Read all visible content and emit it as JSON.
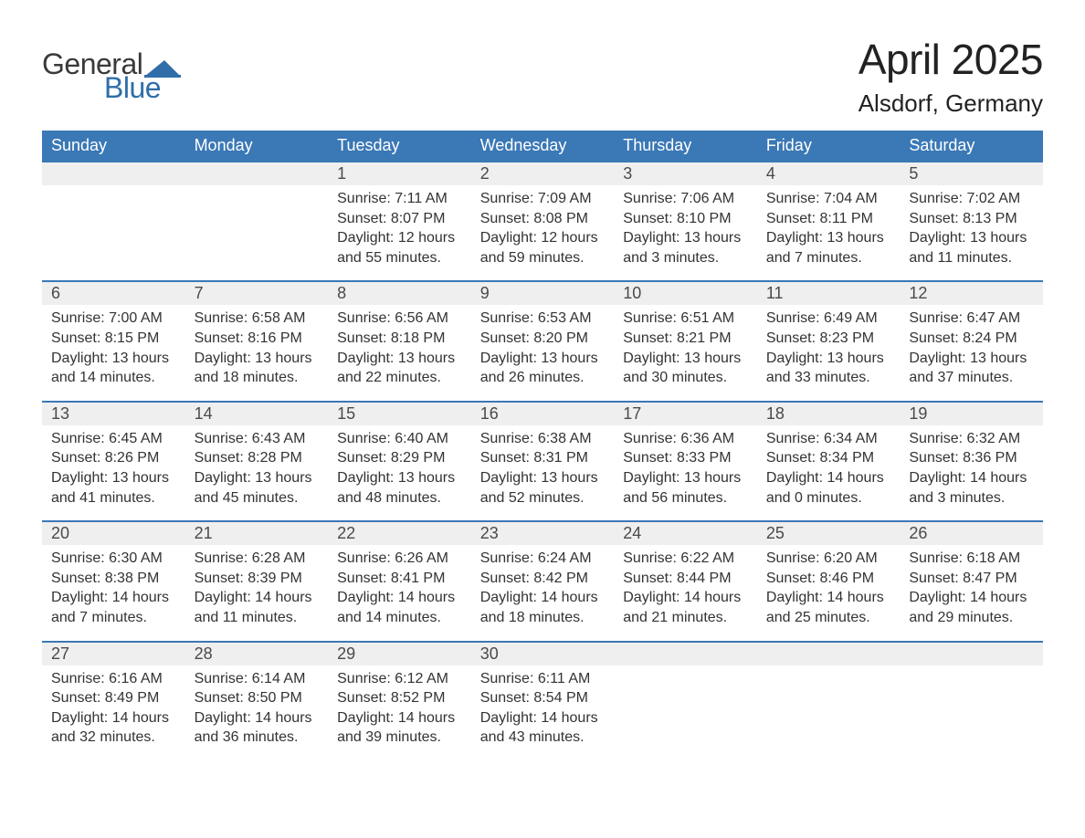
{
  "logo": {
    "word1": "General",
    "word2": "Blue",
    "mark_color": "#2f6ea8",
    "text_gray": "#3a3a3a"
  },
  "title": "April 2025",
  "location": "Alsdorf, Germany",
  "colors": {
    "header_bg": "#3a78b6",
    "header_text": "#ffffff",
    "daynum_bg": "#efefef",
    "row_border": "#3a78b6",
    "body_text": "#333333",
    "daynum_text": "#4a4a4a",
    "page_bg": "#ffffff"
  },
  "typography": {
    "title_fontsize": 46,
    "location_fontsize": 26,
    "header_fontsize": 18,
    "daynum_fontsize": 18,
    "cell_fontsize": 16,
    "logo_fontsize": 32
  },
  "weekdays": [
    "Sunday",
    "Monday",
    "Tuesday",
    "Wednesday",
    "Thursday",
    "Friday",
    "Saturday"
  ],
  "labels": {
    "sunrise": "Sunrise: ",
    "sunset": "Sunset: ",
    "daylight": "Daylight: "
  },
  "weeks": [
    [
      null,
      null,
      {
        "n": "1",
        "sunrise": "7:11 AM",
        "sunset": "8:07 PM",
        "day_h": 12,
        "day_m": 55
      },
      {
        "n": "2",
        "sunrise": "7:09 AM",
        "sunset": "8:08 PM",
        "day_h": 12,
        "day_m": 59
      },
      {
        "n": "3",
        "sunrise": "7:06 AM",
        "sunset": "8:10 PM",
        "day_h": 13,
        "day_m": 3
      },
      {
        "n": "4",
        "sunrise": "7:04 AM",
        "sunset": "8:11 PM",
        "day_h": 13,
        "day_m": 7
      },
      {
        "n": "5",
        "sunrise": "7:02 AM",
        "sunset": "8:13 PM",
        "day_h": 13,
        "day_m": 11
      }
    ],
    [
      {
        "n": "6",
        "sunrise": "7:00 AM",
        "sunset": "8:15 PM",
        "day_h": 13,
        "day_m": 14
      },
      {
        "n": "7",
        "sunrise": "6:58 AM",
        "sunset": "8:16 PM",
        "day_h": 13,
        "day_m": 18
      },
      {
        "n": "8",
        "sunrise": "6:56 AM",
        "sunset": "8:18 PM",
        "day_h": 13,
        "day_m": 22
      },
      {
        "n": "9",
        "sunrise": "6:53 AM",
        "sunset": "8:20 PM",
        "day_h": 13,
        "day_m": 26
      },
      {
        "n": "10",
        "sunrise": "6:51 AM",
        "sunset": "8:21 PM",
        "day_h": 13,
        "day_m": 30
      },
      {
        "n": "11",
        "sunrise": "6:49 AM",
        "sunset": "8:23 PM",
        "day_h": 13,
        "day_m": 33
      },
      {
        "n": "12",
        "sunrise": "6:47 AM",
        "sunset": "8:24 PM",
        "day_h": 13,
        "day_m": 37
      }
    ],
    [
      {
        "n": "13",
        "sunrise": "6:45 AM",
        "sunset": "8:26 PM",
        "day_h": 13,
        "day_m": 41
      },
      {
        "n": "14",
        "sunrise": "6:43 AM",
        "sunset": "8:28 PM",
        "day_h": 13,
        "day_m": 45
      },
      {
        "n": "15",
        "sunrise": "6:40 AM",
        "sunset": "8:29 PM",
        "day_h": 13,
        "day_m": 48
      },
      {
        "n": "16",
        "sunrise": "6:38 AM",
        "sunset": "8:31 PM",
        "day_h": 13,
        "day_m": 52
      },
      {
        "n": "17",
        "sunrise": "6:36 AM",
        "sunset": "8:33 PM",
        "day_h": 13,
        "day_m": 56
      },
      {
        "n": "18",
        "sunrise": "6:34 AM",
        "sunset": "8:34 PM",
        "day_h": 14,
        "day_m": 0
      },
      {
        "n": "19",
        "sunrise": "6:32 AM",
        "sunset": "8:36 PM",
        "day_h": 14,
        "day_m": 3
      }
    ],
    [
      {
        "n": "20",
        "sunrise": "6:30 AM",
        "sunset": "8:38 PM",
        "day_h": 14,
        "day_m": 7
      },
      {
        "n": "21",
        "sunrise": "6:28 AM",
        "sunset": "8:39 PM",
        "day_h": 14,
        "day_m": 11
      },
      {
        "n": "22",
        "sunrise": "6:26 AM",
        "sunset": "8:41 PM",
        "day_h": 14,
        "day_m": 14
      },
      {
        "n": "23",
        "sunrise": "6:24 AM",
        "sunset": "8:42 PM",
        "day_h": 14,
        "day_m": 18
      },
      {
        "n": "24",
        "sunrise": "6:22 AM",
        "sunset": "8:44 PM",
        "day_h": 14,
        "day_m": 21
      },
      {
        "n": "25",
        "sunrise": "6:20 AM",
        "sunset": "8:46 PM",
        "day_h": 14,
        "day_m": 25
      },
      {
        "n": "26",
        "sunrise": "6:18 AM",
        "sunset": "8:47 PM",
        "day_h": 14,
        "day_m": 29
      }
    ],
    [
      {
        "n": "27",
        "sunrise": "6:16 AM",
        "sunset": "8:49 PM",
        "day_h": 14,
        "day_m": 32
      },
      {
        "n": "28",
        "sunrise": "6:14 AM",
        "sunset": "8:50 PM",
        "day_h": 14,
        "day_m": 36
      },
      {
        "n": "29",
        "sunrise": "6:12 AM",
        "sunset": "8:52 PM",
        "day_h": 14,
        "day_m": 39
      },
      {
        "n": "30",
        "sunrise": "6:11 AM",
        "sunset": "8:54 PM",
        "day_h": 14,
        "day_m": 43
      },
      null,
      null,
      null
    ]
  ]
}
